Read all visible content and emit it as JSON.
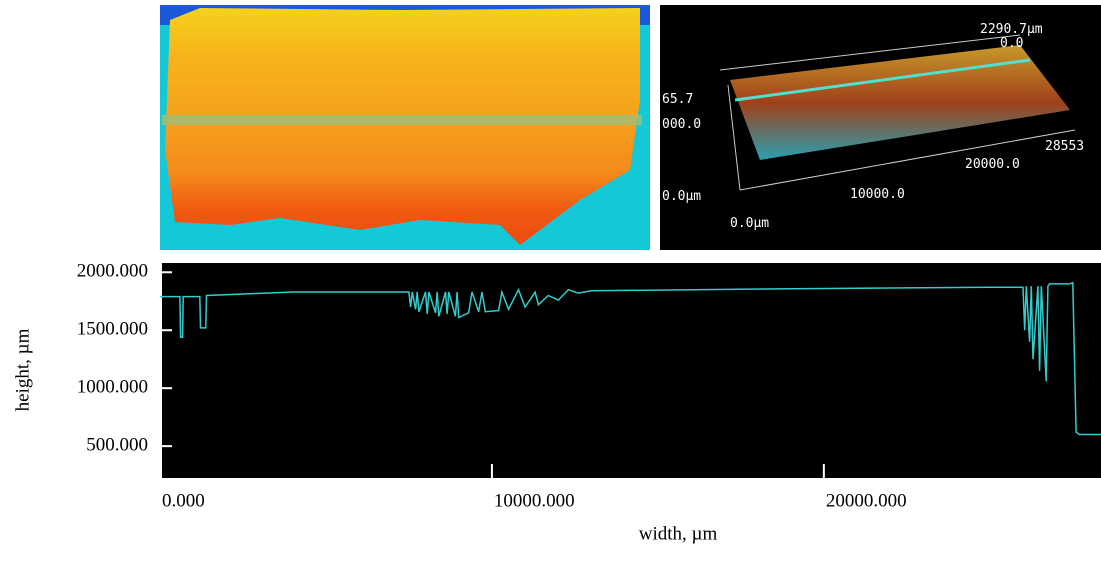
{
  "chart_data": {
    "type": "line",
    "xlabel": "width, µm",
    "ylabel": "height, µm",
    "x": [
      0,
      600,
      620,
      680,
      700,
      1200,
      1220,
      1380,
      1400,
      4000,
      7500,
      7550,
      7600,
      7700,
      7750,
      7800,
      8000,
      8050,
      8100,
      8300,
      8350,
      8400,
      8600,
      8650,
      8700,
      8900,
      8950,
      9000,
      9300,
      9400,
      9600,
      9700,
      9800,
      10200,
      10300,
      10500,
      10800,
      11000,
      11300,
      11400,
      11700,
      12000,
      12300,
      12600,
      13000,
      16000,
      20000,
      25000,
      26000,
      26050,
      26100,
      26200,
      26250,
      26300,
      26450,
      26500,
      26550,
      26700,
      26750,
      26800,
      27400,
      27500,
      27600,
      27700,
      28350
    ],
    "series": [
      {
        "color": "#33cccc",
        "values": [
          1790,
          1790,
          1440,
          1440,
          1790,
          1790,
          1520,
          1520,
          1800,
          1830,
          1830,
          1700,
          1830,
          1680,
          1830,
          1660,
          1830,
          1640,
          1830,
          1650,
          1830,
          1620,
          1830,
          1640,
          1830,
          1620,
          1830,
          1610,
          1650,
          1830,
          1660,
          1830,
          1660,
          1670,
          1830,
          1680,
          1850,
          1700,
          1830,
          1720,
          1800,
          1760,
          1850,
          1820,
          1840,
          1850,
          1860,
          1870,
          1870,
          1500,
          1880,
          1400,
          1880,
          1250,
          1880,
          1150,
          1880,
          1060,
          1880,
          1900,
          1900,
          1910,
          620,
          600,
          600
        ]
      }
    ],
    "xlim": [
      0,
      28350
    ],
    "ylim": [
      225,
      2080
    ],
    "xticks": [
      {
        "value": 0,
        "label": "0.000"
      },
      {
        "value": 10000,
        "label": "10000.000"
      },
      {
        "value": 20000,
        "label": "20000.000"
      }
    ],
    "yticks": [
      {
        "value": 500,
        "label": "500.000"
      },
      {
        "value": 1000,
        "label": "1000.000"
      },
      {
        "value": 1500,
        "label": "1500.000"
      },
      {
        "value": 2000,
        "label": "2000.000"
      }
    ],
    "background": "#000000"
  },
  "surface_3d": {
    "labels": [
      "2290.7µm",
      "0.0",
      "65.7",
      "000.0",
      "28553",
      "20000.0",
      "10000.0",
      "0.0µm",
      "0.0µm"
    ]
  }
}
